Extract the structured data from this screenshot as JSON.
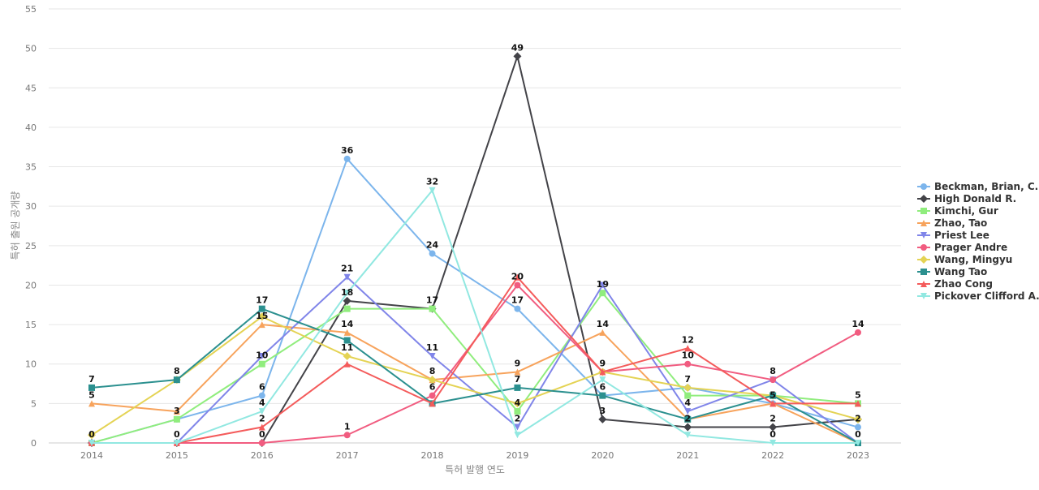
{
  "chart_data": {
    "type": "line",
    "title": "",
    "xlabel": "특허 발행 연도",
    "ylabel": "특허 출원 공개량",
    "x": [
      "2014",
      "2015",
      "2016",
      "2017",
      "2018",
      "2019",
      "2020",
      "2021",
      "2022",
      "2023"
    ],
    "ylim": [
      0,
      55
    ],
    "yticks": [
      0,
      5,
      10,
      15,
      20,
      25,
      30,
      35,
      40,
      45,
      50,
      55
    ],
    "grid": true,
    "legend_position": "right",
    "series": [
      {
        "name": "Beckman, Brian, C.",
        "color": "#7cb5ec",
        "marker": "circle",
        "values": [
          0,
          3,
          6,
          36,
          24,
          17,
          6,
          7,
          5,
          2
        ]
      },
      {
        "name": "High Donald R.",
        "color": "#434348",
        "marker": "diamond",
        "values": [
          0,
          0,
          0,
          18,
          17,
          49,
          3,
          2,
          2,
          3
        ]
      },
      {
        "name": "Kimchi, Gur",
        "color": "#90ed7d",
        "marker": "square",
        "values": [
          0,
          3,
          10,
          17,
          17,
          4,
          19,
          6,
          6,
          5
        ]
      },
      {
        "name": "Zhao, Tao",
        "color": "#f7a35c",
        "marker": "triangle",
        "values": [
          5,
          4,
          15,
          14,
          8,
          9,
          14,
          3,
          5,
          0
        ]
      },
      {
        "name": "Priest Lee",
        "color": "#8085e9",
        "marker": "triangle-down",
        "values": [
          0,
          0,
          11,
          21,
          11,
          2,
          20,
          4,
          8,
          0
        ]
      },
      {
        "name": "Prager Andre",
        "color": "#f15c80",
        "marker": "circle",
        "values": [
          0,
          0,
          0,
          1,
          6,
          20,
          9,
          10,
          8,
          14
        ]
      },
      {
        "name": "Wang, Mingyu",
        "color": "#e4d354",
        "marker": "diamond",
        "values": [
          1,
          8,
          16,
          11,
          8,
          5,
          9,
          7,
          6,
          3
        ]
      },
      {
        "name": "Wang Tao",
        "color": "#2b908f",
        "marker": "square",
        "values": [
          7,
          8,
          17,
          13,
          5,
          7,
          6,
          3,
          6,
          0
        ]
      },
      {
        "name": "Zhao Cong",
        "color": "#f45b5b",
        "marker": "triangle",
        "values": [
          0,
          0,
          2,
          10,
          5,
          21,
          9,
          12,
          5,
          5
        ]
      },
      {
        "name": "Pickover Clifford A.",
        "color": "#91e8e1",
        "marker": "triangle-down",
        "values": [
          0,
          0,
          4,
          19,
          32,
          1,
          8,
          1,
          0,
          0
        ]
      }
    ],
    "data_labels": [
      {
        "x": "2014",
        "y": 7,
        "text": "7"
      },
      {
        "x": "2014",
        "y": 5,
        "text": "5"
      },
      {
        "x": "2014",
        "y": 0,
        "text": "0"
      },
      {
        "x": "2015",
        "y": 8,
        "text": "8"
      },
      {
        "x": "2015",
        "y": 3,
        "text": "3"
      },
      {
        "x": "2015",
        "y": 0,
        "text": "0"
      },
      {
        "x": "2016",
        "y": 17,
        "text": "17"
      },
      {
        "x": "2016",
        "y": 15,
        "text": "15"
      },
      {
        "x": "2016",
        "y": 10,
        "text": "10"
      },
      {
        "x": "2016",
        "y": 6,
        "text": "6"
      },
      {
        "x": "2016",
        "y": 4,
        "text": "4"
      },
      {
        "x": "2016",
        "y": 2,
        "text": "2"
      },
      {
        "x": "2016",
        "y": 0,
        "text": "0"
      },
      {
        "x": "2017",
        "y": 36,
        "text": "36"
      },
      {
        "x": "2017",
        "y": 21,
        "text": "21"
      },
      {
        "x": "2017",
        "y": 18,
        "text": "18"
      },
      {
        "x": "2017",
        "y": 14,
        "text": "14"
      },
      {
        "x": "2017",
        "y": 11,
        "text": "11"
      },
      {
        "x": "2017",
        "y": 1,
        "text": "1"
      },
      {
        "x": "2018",
        "y": 32,
        "text": "32"
      },
      {
        "x": "2018",
        "y": 24,
        "text": "24"
      },
      {
        "x": "2018",
        "y": 17,
        "text": "17"
      },
      {
        "x": "2018",
        "y": 11,
        "text": "11"
      },
      {
        "x": "2018",
        "y": 8,
        "text": "8"
      },
      {
        "x": "2018",
        "y": 6,
        "text": "6"
      },
      {
        "x": "2019",
        "y": 49,
        "text": "49"
      },
      {
        "x": "2019",
        "y": 20,
        "text": "20"
      },
      {
        "x": "2019",
        "y": 17,
        "text": "17"
      },
      {
        "x": "2019",
        "y": 9,
        "text": "9"
      },
      {
        "x": "2019",
        "y": 7,
        "text": "7"
      },
      {
        "x": "2019",
        "y": 4,
        "text": "4"
      },
      {
        "x": "2019",
        "y": 2,
        "text": "2"
      },
      {
        "x": "2020",
        "y": 19,
        "text": "19"
      },
      {
        "x": "2020",
        "y": 14,
        "text": "14"
      },
      {
        "x": "2020",
        "y": 9,
        "text": "9"
      },
      {
        "x": "2020",
        "y": 6,
        "text": "6"
      },
      {
        "x": "2020",
        "y": 3,
        "text": "3"
      },
      {
        "x": "2021",
        "y": 12,
        "text": "12"
      },
      {
        "x": "2021",
        "y": 10,
        "text": "10"
      },
      {
        "x": "2021",
        "y": 7,
        "text": "7"
      },
      {
        "x": "2021",
        "y": 4,
        "text": "4"
      },
      {
        "x": "2021",
        "y": 2,
        "text": "2"
      },
      {
        "x": "2022",
        "y": 8,
        "text": "8"
      },
      {
        "x": "2022",
        "y": 5,
        "text": "5"
      },
      {
        "x": "2022",
        "y": 2,
        "text": "2"
      },
      {
        "x": "2022",
        "y": 0,
        "text": "0"
      },
      {
        "x": "2023",
        "y": 14,
        "text": "14"
      },
      {
        "x": "2023",
        "y": 5,
        "text": "5"
      },
      {
        "x": "2023",
        "y": 2,
        "text": "2"
      },
      {
        "x": "2023",
        "y": 0,
        "text": "0"
      }
    ]
  }
}
